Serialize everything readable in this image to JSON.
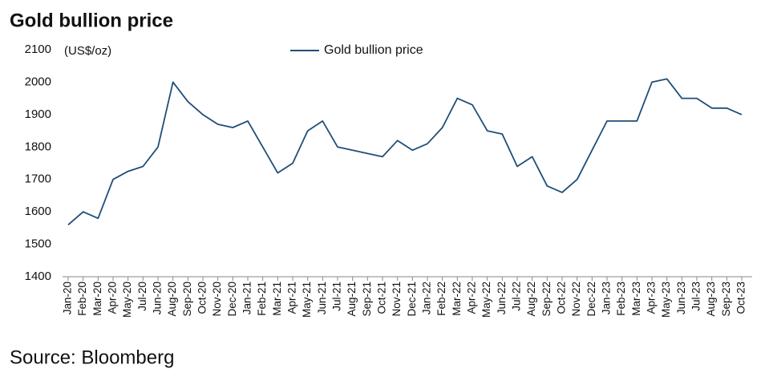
{
  "chart_data": {
    "type": "line",
    "title": "Gold bullion price",
    "y_label": "(US$/oz)",
    "source": "Source: Bloomberg",
    "legend": "top",
    "categories": [
      "Jan-20",
      "Feb-20",
      "Mar-20",
      "Apr-20",
      "May-20",
      "Jul-20",
      "Jun-20",
      "Aug-20",
      "Sep-20",
      "Oct-20",
      "Nov-20",
      "Dec-20",
      "Jan-21",
      "Feb-21",
      "Mar-21",
      "Apr-21",
      "May-21",
      "Jun-21",
      "Jul-21",
      "Aug-21",
      "Sep-21",
      "Oct-21",
      "Nov-21",
      "Dec-21",
      "Jan-22",
      "Feb-22",
      "Mar-22",
      "Apr-22",
      "May-22",
      "Jun-22",
      "Jul-22",
      "Aug-22",
      "Sep-22",
      "Oct-22",
      "Nov-22",
      "Dec-22",
      "Jan-23",
      "Feb-23",
      "Mar-23",
      "Apr-23",
      "May-23",
      "Jun-23",
      "Jul-23",
      "Aug-23",
      "Sep-23",
      "Oct-23"
    ],
    "series": [
      {
        "name": "Gold bullion price",
        "color": "#1f4e79",
        "values": [
          1560,
          1600,
          1580,
          1700,
          1725,
          1740,
          1800,
          2000,
          1940,
          1900,
          1870,
          1860,
          1880,
          1800,
          1720,
          1750,
          1850,
          1880,
          1800,
          1790,
          1780,
          1770,
          1820,
          1790,
          1810,
          1860,
          1950,
          1930,
          1850,
          1840,
          1740,
          1770,
          1680,
          1660,
          1700,
          1790,
          1880,
          1880,
          1880,
          2000,
          2010,
          1950,
          1950,
          1920,
          1920,
          1900
        ]
      }
    ],
    "ylim": [
      1400,
      2100
    ],
    "yticks": [
      1400,
      1500,
      1600,
      1700,
      1800,
      1900,
      2000,
      2100
    ]
  }
}
